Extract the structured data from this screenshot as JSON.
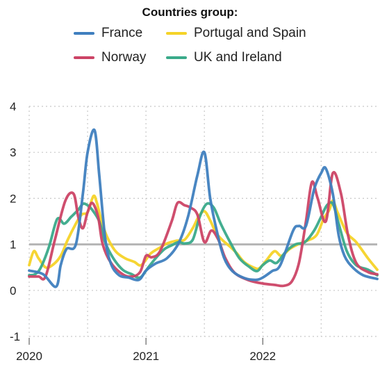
{
  "chart_data": {
    "type": "line",
    "title": "",
    "legend_title": "Countries group:",
    "legend_position": "top",
    "xlabel": "",
    "ylabel": "",
    "ylim": [
      -1,
      4
    ],
    "xlim": [
      2020.0,
      2022.98
    ],
    "grid": true,
    "reference_line": 1,
    "x_ticks": [
      2020,
      2021,
      2022
    ],
    "x_tick_labels": [
      "2020",
      "2021",
      "2022"
    ],
    "y_ticks": [
      -1,
      0,
      1,
      2,
      3,
      4
    ],
    "y_tick_labels": [
      "-1",
      "0",
      "1",
      "2",
      "3",
      "4"
    ],
    "series": [
      {
        "name": "France",
        "color": "#3f7fbf",
        "x": [
          2020.0,
          2020.12,
          2020.23,
          2020.27,
          2020.32,
          2020.4,
          2020.46,
          2020.5,
          2020.56,
          2020.6,
          2020.65,
          2020.7,
          2020.77,
          2020.85,
          2020.94,
          2021.0,
          2021.08,
          2021.18,
          2021.28,
          2021.36,
          2021.44,
          2021.5,
          2021.55,
          2021.61,
          2021.67,
          2021.74,
          2021.84,
          2021.94,
          2022.0,
          2022.08,
          2022.15,
          2022.26,
          2022.31,
          2022.37,
          2022.44,
          2022.5,
          2022.54,
          2022.6,
          2022.65,
          2022.7,
          2022.77,
          2022.86,
          2022.98
        ],
        "y": [
          0.43,
          0.35,
          0.08,
          0.55,
          0.9,
          1.0,
          2.1,
          3.0,
          3.48,
          2.5,
          1.15,
          0.58,
          0.33,
          0.28,
          0.23,
          0.43,
          0.58,
          0.7,
          1.03,
          1.6,
          2.5,
          3.0,
          2.0,
          1.25,
          0.7,
          0.42,
          0.27,
          0.23,
          0.28,
          0.42,
          0.55,
          1.3,
          1.4,
          1.4,
          2.2,
          2.55,
          2.65,
          2.1,
          1.2,
          0.75,
          0.5,
          0.33,
          0.25
        ]
      },
      {
        "name": "Norway",
        "color": "#cc4466",
        "x": [
          2020.0,
          2020.08,
          2020.14,
          2020.22,
          2020.31,
          2020.38,
          2020.42,
          2020.46,
          2020.5,
          2020.54,
          2020.59,
          2020.63,
          2020.7,
          2020.8,
          2020.88,
          2020.95,
          2021.0,
          2021.05,
          2021.12,
          2021.22,
          2021.27,
          2021.33,
          2021.38,
          2021.44,
          2021.5,
          2021.56,
          2021.62,
          2021.68,
          2021.76,
          2021.88,
          2022.0,
          2022.1,
          2022.18,
          2022.25,
          2022.31,
          2022.37,
          2022.42,
          2022.47,
          2022.54,
          2022.6,
          2022.67,
          2022.73,
          2022.8,
          2022.9,
          2022.98
        ],
        "y": [
          0.3,
          0.3,
          0.3,
          1.1,
          1.95,
          2.1,
          1.6,
          1.35,
          1.7,
          1.9,
          1.6,
          1.0,
          0.6,
          0.35,
          0.3,
          0.4,
          0.75,
          0.72,
          0.85,
          1.5,
          1.9,
          1.85,
          1.8,
          1.65,
          1.05,
          1.3,
          1.1,
          0.7,
          0.38,
          0.22,
          0.15,
          0.12,
          0.1,
          0.2,
          0.6,
          1.5,
          2.35,
          2.0,
          1.5,
          2.55,
          2.1,
          1.2,
          0.6,
          0.4,
          0.35
        ]
      },
      {
        "name": "Portugal and Spain",
        "color": "#f5d328",
        "x": [
          2020.0,
          2020.04,
          2020.08,
          2020.14,
          2020.2,
          2020.27,
          2020.33,
          2020.4,
          2020.45,
          2020.5,
          2020.55,
          2020.58,
          2020.62,
          2020.67,
          2020.74,
          2020.82,
          2020.9,
          2020.96,
          2021.04,
          2021.12,
          2021.18,
          2021.26,
          2021.33,
          2021.4,
          2021.45,
          2021.5,
          2021.55,
          2021.6,
          2021.66,
          2021.72,
          2021.78,
          2021.84,
          2021.92,
          2021.97,
          2022.03,
          2022.1,
          2022.16,
          2022.23,
          2022.3,
          2022.38,
          2022.46,
          2022.52,
          2022.57,
          2022.6,
          2022.64,
          2022.72,
          2022.8,
          2022.9,
          2022.98
        ],
        "y": [
          0.55,
          0.85,
          0.7,
          0.5,
          0.55,
          0.75,
          1.1,
          1.45,
          1.65,
          1.7,
          2.05,
          1.9,
          1.5,
          1.15,
          0.85,
          0.7,
          0.62,
          0.55,
          0.8,
          0.93,
          1.02,
          1.08,
          1.1,
          1.35,
          1.6,
          1.72,
          1.52,
          1.25,
          1.08,
          0.95,
          0.8,
          0.62,
          0.5,
          0.48,
          0.65,
          0.85,
          0.75,
          0.9,
          1.0,
          1.08,
          1.2,
          1.55,
          1.75,
          1.95,
          1.7,
          1.25,
          1.05,
          0.7,
          0.45
        ]
      },
      {
        "name": "UK and Ireland",
        "color": "#3aaa8a",
        "x": [
          2020.0,
          2020.05,
          2020.1,
          2020.17,
          2020.24,
          2020.3,
          2020.36,
          2020.42,
          2020.46,
          2020.5,
          2020.54,
          2020.6,
          2020.65,
          2020.72,
          2020.8,
          2020.88,
          2020.95,
          2021.02,
          2021.09,
          2021.16,
          2021.22,
          2021.28,
          2021.33,
          2021.4,
          2021.46,
          2021.52,
          2021.58,
          2021.64,
          2021.72,
          2021.8,
          2021.88,
          2021.95,
          2022.0,
          2022.06,
          2022.12,
          2022.2,
          2022.28,
          2022.36,
          2022.44,
          2022.5,
          2022.55,
          2022.6,
          2022.65,
          2022.72,
          2022.8,
          2022.9,
          2022.98
        ],
        "y": [
          0.33,
          0.35,
          0.5,
          0.95,
          1.55,
          1.45,
          1.6,
          1.75,
          1.88,
          1.85,
          1.75,
          1.5,
          1.05,
          0.7,
          0.45,
          0.35,
          0.28,
          0.5,
          0.72,
          0.9,
          0.98,
          1.05,
          1.02,
          1.1,
          1.6,
          1.88,
          1.8,
          1.45,
          1.05,
          0.7,
          0.52,
          0.42,
          0.55,
          0.65,
          0.6,
          0.85,
          1.0,
          1.05,
          1.3,
          1.6,
          1.85,
          1.88,
          1.45,
          0.85,
          0.55,
          0.45,
          0.33
        ]
      }
    ]
  }
}
